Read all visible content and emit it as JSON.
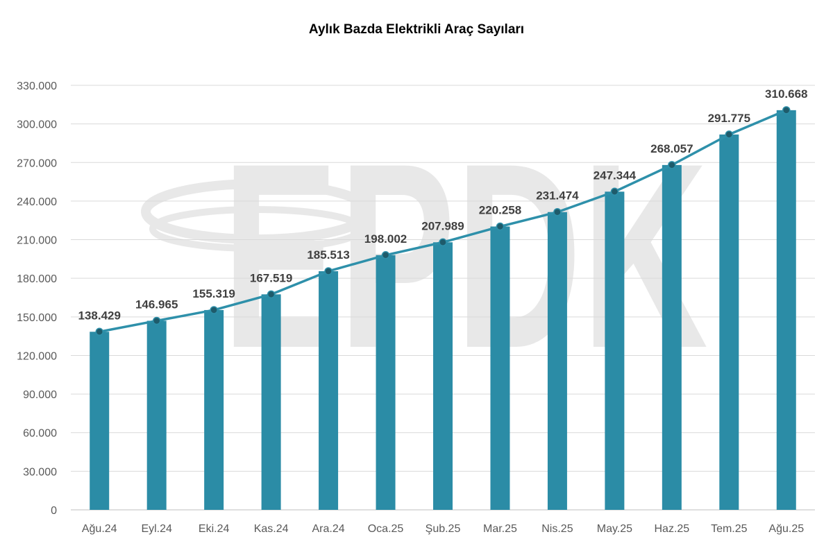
{
  "chart_data": {
    "type": "bar+line",
    "title": "Aylık Bazda Elektrikli Araç Sayıları",
    "xlabel": "",
    "ylabel": "",
    "categories": [
      "Ağu.24",
      "Eyl.24",
      "Eki.24",
      "Kas.24",
      "Ara.24",
      "Oca.25",
      "Şub.25",
      "Mar.25",
      "Nis.25",
      "May.25",
      "Haz.25",
      "Tem.25",
      "Ağu.25"
    ],
    "values": [
      138429,
      146965,
      155319,
      167519,
      185513,
      198002,
      207989,
      220258,
      231474,
      247344,
      268057,
      291775,
      310668
    ],
    "data_labels": [
      "138.429",
      "146.965",
      "155.319",
      "167.519",
      "185.513",
      "198.002",
      "207.989",
      "220.258",
      "231.474",
      "247.344",
      "268.057",
      "291.775",
      "310.668"
    ],
    "ylim": [
      0,
      330000
    ],
    "yticks": [
      0,
      30000,
      60000,
      90000,
      120000,
      150000,
      180000,
      210000,
      240000,
      270000,
      300000,
      330000
    ],
    "ytick_labels": [
      "0",
      "30.000",
      "60.000",
      "90.000",
      "120.000",
      "150.000",
      "180.000",
      "210.000",
      "240.000",
      "270.000",
      "300.000",
      "330.000"
    ],
    "grid": true,
    "legend": "none",
    "colors": {
      "bar": "#2B8CA6",
      "line": "#2E90AA",
      "marker": "#1E5B6B",
      "grid": "#D9D9D9"
    },
    "watermark": "EPDK"
  }
}
